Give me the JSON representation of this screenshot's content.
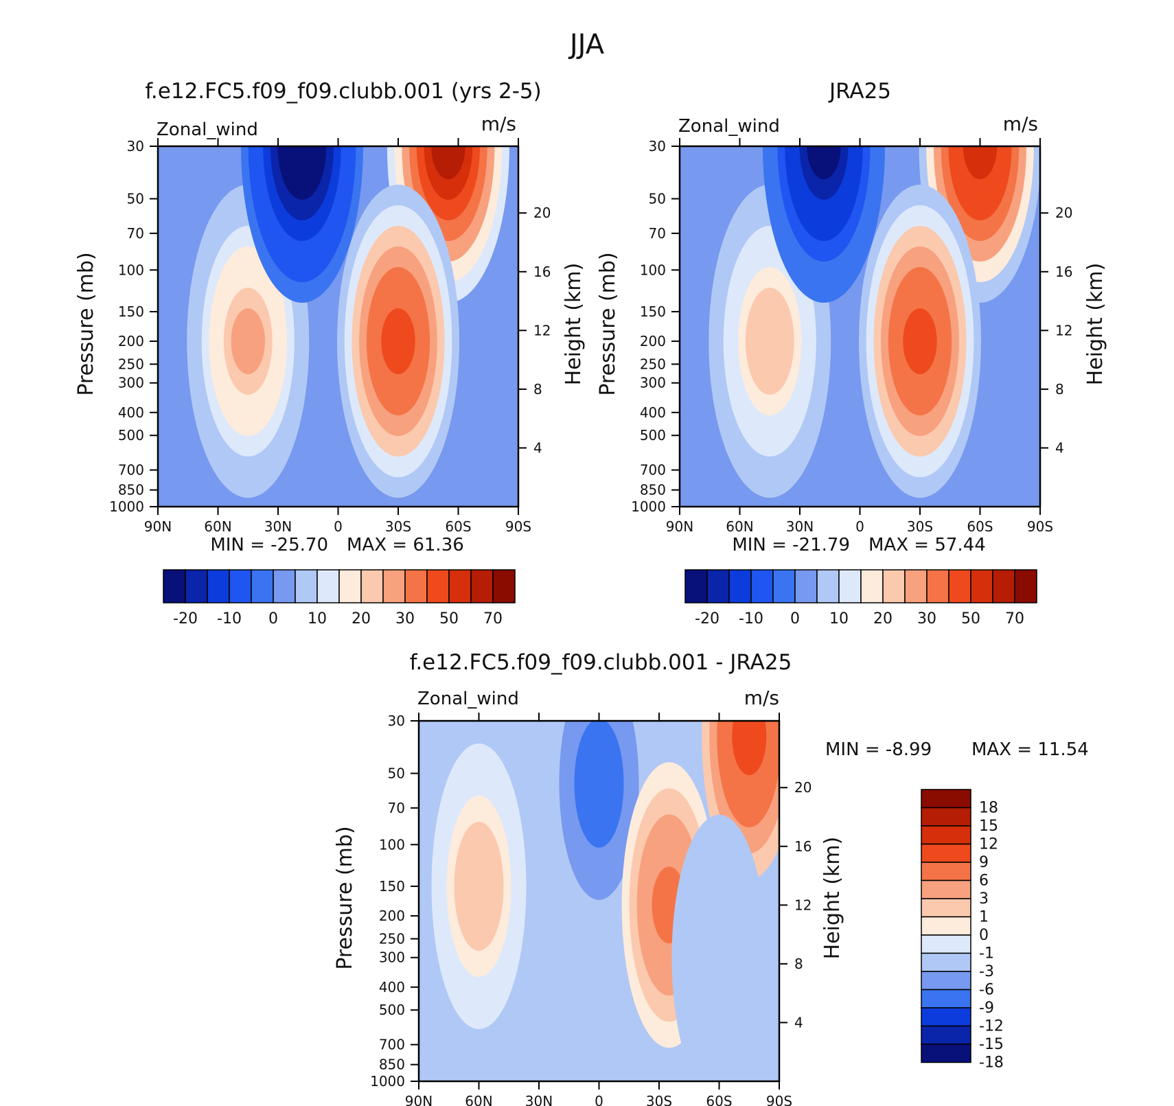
{
  "figure": {
    "title": "JJA"
  },
  "colors": {
    "full_palette": [
      "#08107a",
      "#0a25aa",
      "#0d3cdc",
      "#1f55f0",
      "#3a74f0",
      "#7799ef",
      "#b0c8f5",
      "#dde9fb",
      "#fdebdc",
      "#fbc9ae",
      "#f8a17e",
      "#f47447",
      "#ee4a1d",
      "#d52f0b",
      "#b51d04",
      "#8a0b00"
    ],
    "diff_palette": [
      "#08107a",
      "#0a25aa",
      "#0d3cdc",
      "#3a74f0",
      "#7799ef",
      "#b0c8f5",
      "#dde9fb",
      "#fdebdc",
      "#fbc9ae",
      "#f8a17e",
      "#f47447",
      "#ee4a1d",
      "#d52f0b",
      "#b51d04",
      "#8a0b00"
    ]
  },
  "chart_data": [
    {
      "type": "heatmap",
      "title": "f.e12.FC5.f09_f09.clubb.001 (yrs 2-5)",
      "variable": "Zonal_wind",
      "units": "m/s",
      "xlabel": "",
      "ylabel": "Pressure (mb)",
      "y2label": "Height (km)",
      "x_ticks": [
        "90N",
        "60N",
        "30N",
        "0",
        "30S",
        "60S",
        "90S"
      ],
      "y_ticks": [
        "30",
        "50",
        "70",
        "100",
        "150",
        "200",
        "250",
        "300",
        "400",
        "500",
        "700",
        "850",
        "1000"
      ],
      "y2_ticks": [
        "4",
        "8",
        "12",
        "16",
        "20"
      ],
      "y_scale": "log",
      "stats": {
        "min_text": "MIN = -25.70",
        "max_text": "MAX =  61.36",
        "min": -25.7,
        "max": 61.36
      },
      "colorbar": {
        "orientation": "horizontal",
        "labels": [
          "-20",
          "-10",
          "0",
          "10",
          "20",
          "30",
          "50",
          "70"
        ]
      },
      "features": [
        {
          "kind": "westerly jet",
          "lat": 45,
          "pressure_mb": 200,
          "peak": 26
        },
        {
          "kind": "southern winter jet",
          "lat": -55,
          "pressure_mb": 30,
          "peak": 61
        },
        {
          "kind": "subtropical jet",
          "lat": -30,
          "pressure_mb": 200,
          "peak": 46
        },
        {
          "kind": "easterly",
          "lat": 18,
          "pressure_mb": 30,
          "peak": -25.7
        }
      ]
    },
    {
      "type": "heatmap",
      "title": "JRA25",
      "variable": "Zonal_wind",
      "units": "m/s",
      "xlabel": "",
      "ylabel": "Pressure (mb)",
      "y2label": "Height (km)",
      "x_ticks": [
        "90N",
        "60N",
        "30N",
        "0",
        "30S",
        "60S",
        "90S"
      ],
      "y_ticks": [
        "30",
        "50",
        "70",
        "100",
        "150",
        "200",
        "250",
        "300",
        "400",
        "500",
        "700",
        "850",
        "1000"
      ],
      "y2_ticks": [
        "4",
        "8",
        "12",
        "16",
        "20"
      ],
      "y_scale": "log",
      "stats": {
        "min_text": "MIN = -21.79",
        "max_text": "MAX =  57.44",
        "min": -21.79,
        "max": 57.44
      },
      "colorbar": {
        "orientation": "horizontal",
        "labels": [
          "-20",
          "-10",
          "0",
          "10",
          "20",
          "30",
          "50",
          "70"
        ]
      },
      "features": [
        {
          "kind": "westerly jet",
          "lat": 45,
          "pressure_mb": 200,
          "peak": 24
        },
        {
          "kind": "southern winter jet",
          "lat": -60,
          "pressure_mb": 30,
          "peak": 57
        },
        {
          "kind": "subtropical jet",
          "lat": -30,
          "pressure_mb": 200,
          "peak": 44
        },
        {
          "kind": "easterly",
          "lat": 18,
          "pressure_mb": 30,
          "peak": -21.8
        }
      ]
    },
    {
      "type": "heatmap",
      "title": "f.e12.FC5.f09_f09.clubb.001 - JRA25",
      "variable": "Zonal_wind",
      "units": "m/s",
      "xlabel": "",
      "ylabel": "Pressure (mb)",
      "y2label": "Height (km)",
      "x_ticks": [
        "90N",
        "60N",
        "30N",
        "0",
        "30S",
        "60S",
        "90S"
      ],
      "y_ticks": [
        "30",
        "50",
        "70",
        "100",
        "150",
        "200",
        "250",
        "300",
        "400",
        "500",
        "700",
        "850",
        "1000"
      ],
      "y2_ticks": [
        "4",
        "8",
        "12",
        "16",
        "20"
      ],
      "y_scale": "log",
      "stats": {
        "min_text": "MIN =   -8.99",
        "max_text": "MAX =   11.54",
        "min": -8.99,
        "max": 11.54
      },
      "colorbar": {
        "orientation": "vertical",
        "labels": [
          "18",
          "15",
          "12",
          "9",
          "6",
          "3",
          "1",
          "0",
          "-1",
          "-3",
          "-6",
          "-9",
          "-12",
          "-15",
          "-18"
        ]
      },
      "features": [
        {
          "kind": "positive",
          "lat": 60,
          "pressure_mb": 150,
          "peak": 2
        },
        {
          "kind": "negative",
          "lat": 0,
          "pressure_mb": 55,
          "peak": -8.99
        },
        {
          "kind": "positive",
          "lat": -35,
          "pressure_mb": 180,
          "peak": 7
        },
        {
          "kind": "positive",
          "lat": -75,
          "pressure_mb": 35,
          "peak": 11.54
        },
        {
          "kind": "negative",
          "lat": -60,
          "pressure_mb": 300,
          "peak": -2
        }
      ]
    }
  ]
}
